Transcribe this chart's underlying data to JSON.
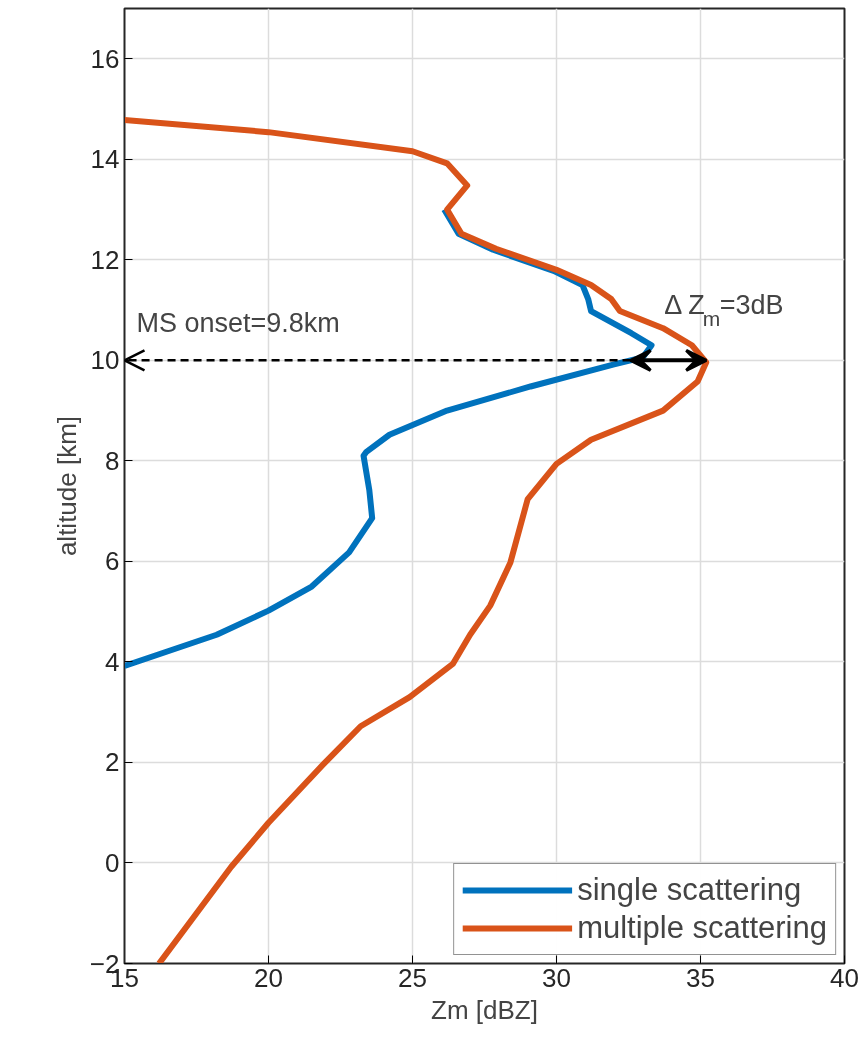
{
  "chart_data": {
    "type": "line",
    "xlabel": "Zm [dBZ]",
    "ylabel": "altitude [km]",
    "xlim": [
      15,
      40
    ],
    "ylim": [
      -2,
      17
    ],
    "xticks": [
      15,
      20,
      25,
      30,
      35,
      40
    ],
    "yticks": [
      -2,
      0,
      2,
      4,
      6,
      8,
      10,
      12,
      14,
      16
    ],
    "grid": true,
    "legend": "bottom right",
    "line_style": "solid",
    "marker": "none",
    "series": [
      {
        "name": "single scattering",
        "color": "#0072bd",
        "x": [
          26.1,
          26.6,
          27.8,
          29.9,
          30.9,
          31.1,
          31.2,
          32.6,
          33.3,
          33.0,
          32.0,
          29.1,
          26.2,
          24.2,
          23.4,
          23.3,
          23.5,
          23.6,
          22.8,
          21.5,
          20.0,
          18.2,
          15.0
        ],
        "values": [
          13.0,
          12.52,
          12.2,
          11.78,
          11.5,
          11.22,
          10.98,
          10.54,
          10.3,
          10.06,
          9.92,
          9.48,
          9.0,
          8.52,
          8.18,
          8.1,
          7.42,
          6.86,
          6.18,
          5.5,
          5.02,
          4.54,
          3.92
        ]
      },
      {
        "name": "multiple scattering",
        "color": "#d95319",
        "x": [
          15.0,
          20.0,
          25.0,
          26.2,
          26.9,
          26.2,
          26.7,
          27.9,
          30.0,
          31.2,
          31.9,
          32.2,
          33.7,
          34.7,
          35.2,
          34.9,
          33.7,
          31.2,
          30.0,
          29.0,
          28.4,
          27.7,
          27.0,
          26.4,
          24.9,
          23.2,
          21.9,
          20.0,
          18.7,
          16.2
        ],
        "values": [
          14.78,
          14.54,
          14.16,
          13.92,
          13.48,
          13.0,
          12.52,
          12.22,
          11.8,
          11.5,
          11.22,
          10.98,
          10.64,
          10.3,
          9.96,
          9.58,
          9.0,
          8.42,
          7.94,
          7.24,
          5.98,
          5.12,
          4.54,
          3.96,
          3.3,
          2.72,
          1.96,
          0.8,
          -0.08,
          -2.0
        ]
      }
    ],
    "annotations": [
      "MS onset=9.8km",
      {
        "text": "Δ Z$_{m}$=3dB",
        "x": 35.2,
        "y": 10
      }
    ]
  }
}
